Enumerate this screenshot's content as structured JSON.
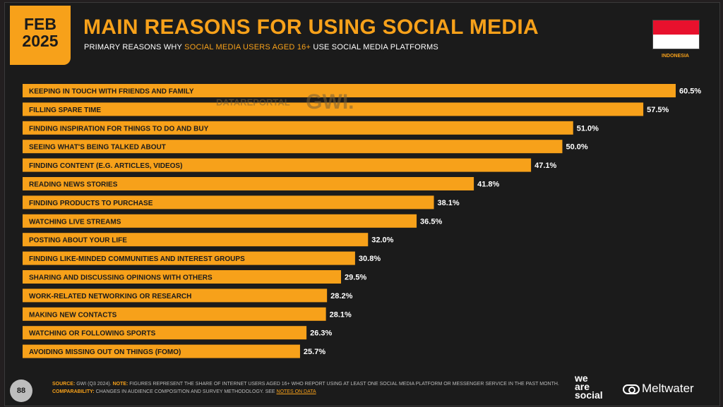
{
  "header": {
    "date_month": "FEB",
    "date_year": "2025",
    "title": "MAIN REASONS FOR USING SOCIAL MEDIA",
    "subtitle_pre": "PRIMARY REASONS WHY ",
    "subtitle_highlight": "SOCIAL MEDIA USERS AGED 16+",
    "subtitle_post": " USE SOCIAL MEDIA PLATFORMS",
    "country": "INDONESIA",
    "watermark_1": "DATAREPORTAL",
    "watermark_2": "GWI."
  },
  "colors": {
    "accent": "#f7a11a",
    "background": "#1b1b1b",
    "flag_red": "#e8112d",
    "flag_white": "#ffffff"
  },
  "chart_data": {
    "type": "bar",
    "orientation": "horizontal",
    "categories": [
      "KEEPING IN TOUCH WITH FRIENDS AND FAMILY",
      "FILLING SPARE TIME",
      "FINDING INSPIRATION FOR THINGS TO DO AND BUY",
      "SEEING WHAT'S BEING TALKED ABOUT",
      "FINDING CONTENT (E.G. ARTICLES, VIDEOS)",
      "READING NEWS STORIES",
      "FINDING PRODUCTS TO PURCHASE",
      "WATCHING LIVE STREAMS",
      "POSTING ABOUT YOUR LIFE",
      "FINDING LIKE-MINDED COMMUNITIES AND INTEREST GROUPS",
      "SHARING AND DISCUSSING OPINIONS WITH OTHERS",
      "WORK-RELATED NETWORKING OR RESEARCH",
      "MAKING NEW CONTACTS",
      "WATCHING OR FOLLOWING SPORTS",
      "AVOIDING MISSING OUT ON THINGS (FOMO)"
    ],
    "values": [
      60.5,
      57.5,
      51.0,
      50.0,
      47.1,
      41.8,
      38.1,
      36.5,
      32.0,
      30.8,
      29.5,
      28.2,
      28.1,
      26.3,
      25.7
    ],
    "value_labels": [
      "60.5%",
      "57.5%",
      "51.0%",
      "50.0%",
      "47.1%",
      "41.8%",
      "38.1%",
      "36.5%",
      "32.0%",
      "30.8%",
      "29.5%",
      "28.2%",
      "28.1%",
      "26.3%",
      "25.7%"
    ],
    "unit": "%",
    "bar_color": "#f7a11a"
  },
  "footer": {
    "source_key": "SOURCE:",
    "source_text": " GWI (Q3 2024). ",
    "note_key": "NOTE:",
    "note_text": " FIGURES REPRESENT THE SHARE OF INTERNET USERS AGED 16+ WHO REPORT USING AT LEAST ONE SOCIAL MEDIA PLATFORM OR MESSENGER SERVICE IN THE PAST MONTH.",
    "comparability_key": "COMPARABILITY:",
    "comparability_text": " CHANGES IN AUDIENCE COMPOSITION AND SURVEY METHODOLOGY. SEE ",
    "notes_link": "NOTES ON DATA",
    "page_number": "88",
    "brand_1_line1": "we",
    "brand_1_line2": "are",
    "brand_1_line3": "social",
    "brand_2": "Meltwater"
  }
}
